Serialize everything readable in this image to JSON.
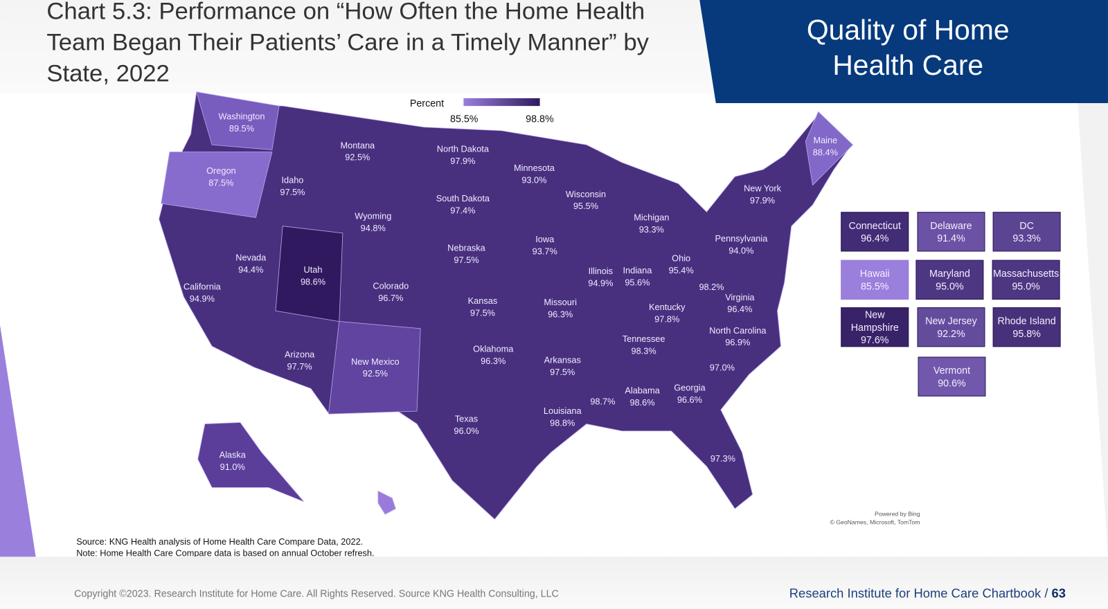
{
  "title": "Chart 5.3: Performance on “How Often the Home Health Team Began Their Patients’ Care in a Timely Manner” by State, 2022",
  "section_badge": "Quality of Home Health Care",
  "legend": {
    "title": "Percent",
    "min": "85.5%",
    "max": "98.8%",
    "min_value": 85.5,
    "max_value": 98.8,
    "color_min": "#9b7fdc",
    "color_max": "#2e1a5e"
  },
  "states": [
    {
      "name": "Washington",
      "value": "89.5%"
    },
    {
      "name": "Oregon",
      "value": "87.5%"
    },
    {
      "name": "Idaho",
      "value": "97.5%"
    },
    {
      "name": "Montana",
      "value": "92.5%"
    },
    {
      "name": "North Dakota",
      "value": "97.9%"
    },
    {
      "name": "South Dakota",
      "value": "97.4%"
    },
    {
      "name": "Minnesota",
      "value": "93.0%"
    },
    {
      "name": "Wyoming",
      "value": "94.8%"
    },
    {
      "name": "Nevada",
      "value": "94.4%"
    },
    {
      "name": "California",
      "value": "94.9%"
    },
    {
      "name": "Utah",
      "value": "98.6%"
    },
    {
      "name": "Colorado",
      "value": "96.7%"
    },
    {
      "name": "Nebraska",
      "value": "97.5%"
    },
    {
      "name": "Kansas",
      "value": "97.5%"
    },
    {
      "name": "Iowa",
      "value": "93.7%"
    },
    {
      "name": "Wisconsin",
      "value": "95.5%"
    },
    {
      "name": "Michigan",
      "value": "93.3%"
    },
    {
      "name": "Illinois",
      "value": "94.9%"
    },
    {
      "name": "Indiana",
      "value": "95.6%"
    },
    {
      "name": "Ohio",
      "value": "95.4%"
    },
    {
      "name": "Missouri",
      "value": "96.3%"
    },
    {
      "name": "Kentucky",
      "value": "97.8%"
    },
    {
      "name": "",
      "value": "98.2%",
      "id": "West Virginia"
    },
    {
      "name": "Virginia",
      "value": "96.4%"
    },
    {
      "name": "Pennsylvania",
      "value": "94.0%"
    },
    {
      "name": "New York",
      "value": "97.9%"
    },
    {
      "name": "Maine",
      "value": "88.4%"
    },
    {
      "name": "North Carolina",
      "value": "96.9%"
    },
    {
      "name": "Tennessee",
      "value": "98.3%"
    },
    {
      "name": "",
      "value": "97.0%",
      "id": "South Carolina"
    },
    {
      "name": "Georgia",
      "value": "96.6%"
    },
    {
      "name": "Alabama",
      "value": "98.6%"
    },
    {
      "name": "",
      "value": "98.7%",
      "id": "Mississippi"
    },
    {
      "name": "Louisiana",
      "value": "98.8%"
    },
    {
      "name": "Arkansas",
      "value": "97.5%"
    },
    {
      "name": "Oklahoma",
      "value": "96.3%"
    },
    {
      "name": "Texas",
      "value": "96.0%"
    },
    {
      "name": "New Mexico",
      "value": "92.5%"
    },
    {
      "name": "Arizona",
      "value": "97.7%"
    },
    {
      "name": "",
      "value": "97.3%",
      "id": "Florida"
    },
    {
      "name": "Alaska",
      "value": "91.0%"
    }
  ],
  "boxes": [
    {
      "name": "Connecticut",
      "value": "96.4%"
    },
    {
      "name": "Delaware",
      "value": "91.4%"
    },
    {
      "name": "DC",
      "value": "93.3%"
    },
    {
      "name": "Hawaii",
      "value": "85.5%"
    },
    {
      "name": "Maryland",
      "value": "95.0%"
    },
    {
      "name": "Massachusetts",
      "value": "95.0%"
    },
    {
      "name": "New Hampshire",
      "value": "97.6%"
    },
    {
      "name": "New Jersey",
      "value": "92.2%"
    },
    {
      "name": "Rhode Island",
      "value": "95.8%"
    },
    {
      "name": "Vermont",
      "value": "90.6%"
    }
  ],
  "attribution": {
    "line1": "Powered by Bing",
    "line2": "© GeoNames, Microsoft, TomTom"
  },
  "source": {
    "line1": "Source: KNG Health analysis of Home Health Care Compare Data, 2022.",
    "line2": "Note: Home Health Care Compare data is based on annual October refresh."
  },
  "footer": {
    "copyright": "Copyright ©2023. Research Institute for Home Care. All Rights Reserved. Source KNG Health Consulting, LLC",
    "chartbook": "Research Institute for Home Care Chartbook /",
    "page": "63"
  }
}
